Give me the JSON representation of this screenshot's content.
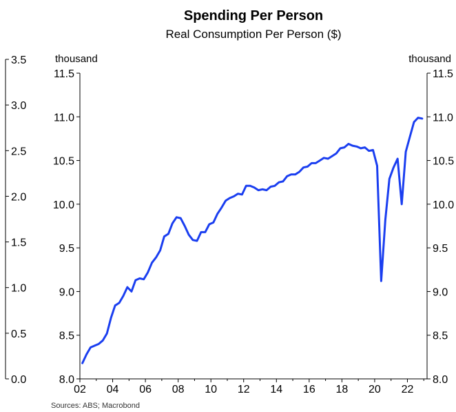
{
  "chart_data": {
    "type": "line",
    "title": "Spending Per Person",
    "subtitle": "Real Consumption Per Person ($)",
    "left_unit": "thousand",
    "right_unit": "thousand",
    "source": "Sources: ABS; Macrobond",
    "ylim": [
      8.0,
      11.5
    ],
    "xlim": [
      2002.0,
      2023.2
    ],
    "y_ticks": [
      "8.0",
      "8.5",
      "9.0",
      "9.5",
      "10.0",
      "10.5",
      "11.0",
      "11.5"
    ],
    "x_ticks": [
      {
        "value": 2002,
        "label": "02"
      },
      {
        "value": 2004,
        "label": "04"
      },
      {
        "value": 2006,
        "label": "06"
      },
      {
        "value": 2008,
        "label": "08"
      },
      {
        "value": 2010,
        "label": "10"
      },
      {
        "value": 2012,
        "label": "12"
      },
      {
        "value": 2014,
        "label": "14"
      },
      {
        "value": 2016,
        "label": "16"
      },
      {
        "value": 2018,
        "label": "18"
      },
      {
        "value": 2020,
        "label": "20"
      },
      {
        "value": 2022,
        "label": "22"
      }
    ],
    "outer_axis": {
      "ylim": [
        0.0,
        3.5
      ],
      "ticks": [
        "0.0",
        "0.5",
        "1.0",
        "1.5",
        "2.0",
        "2.5",
        "3.0",
        "3.5"
      ]
    },
    "grid": false,
    "legend": "none",
    "series_color": "#1a3ef0",
    "series": [
      {
        "values": [
          [
            2002.15,
            8.18
          ],
          [
            2002.4,
            8.28
          ],
          [
            2002.65,
            8.36
          ],
          [
            2002.9,
            8.38
          ],
          [
            2003.15,
            8.4
          ],
          [
            2003.4,
            8.44
          ],
          [
            2003.65,
            8.52
          ],
          [
            2003.9,
            8.7
          ],
          [
            2004.15,
            8.84
          ],
          [
            2004.4,
            8.87
          ],
          [
            2004.65,
            8.95
          ],
          [
            2004.9,
            9.05
          ],
          [
            2005.15,
            9.0
          ],
          [
            2005.4,
            9.13
          ],
          [
            2005.65,
            9.15
          ],
          [
            2005.9,
            9.14
          ],
          [
            2006.15,
            9.22
          ],
          [
            2006.4,
            9.33
          ],
          [
            2006.65,
            9.39
          ],
          [
            2006.9,
            9.47
          ],
          [
            2007.15,
            9.63
          ],
          [
            2007.4,
            9.66
          ],
          [
            2007.65,
            9.78
          ],
          [
            2007.9,
            9.85
          ],
          [
            2008.15,
            9.84
          ],
          [
            2008.4,
            9.75
          ],
          [
            2008.65,
            9.65
          ],
          [
            2008.9,
            9.59
          ],
          [
            2009.15,
            9.58
          ],
          [
            2009.4,
            9.68
          ],
          [
            2009.65,
            9.68
          ],
          [
            2009.9,
            9.77
          ],
          [
            2010.15,
            9.79
          ],
          [
            2010.4,
            9.89
          ],
          [
            2010.65,
            9.96
          ],
          [
            2010.9,
            10.04
          ],
          [
            2011.15,
            10.07
          ],
          [
            2011.4,
            10.09
          ],
          [
            2011.65,
            10.12
          ],
          [
            2011.9,
            10.11
          ],
          [
            2012.15,
            10.21
          ],
          [
            2012.4,
            10.21
          ],
          [
            2012.65,
            10.19
          ],
          [
            2012.9,
            10.16
          ],
          [
            2013.15,
            10.17
          ],
          [
            2013.4,
            10.16
          ],
          [
            2013.65,
            10.2
          ],
          [
            2013.9,
            10.21
          ],
          [
            2014.15,
            10.25
          ],
          [
            2014.4,
            10.26
          ],
          [
            2014.65,
            10.32
          ],
          [
            2014.9,
            10.34
          ],
          [
            2015.15,
            10.34
          ],
          [
            2015.4,
            10.37
          ],
          [
            2015.65,
            10.42
          ],
          [
            2015.9,
            10.43
          ],
          [
            2016.15,
            10.47
          ],
          [
            2016.4,
            10.47
          ],
          [
            2016.65,
            10.5
          ],
          [
            2016.9,
            10.53
          ],
          [
            2017.15,
            10.52
          ],
          [
            2017.4,
            10.55
          ],
          [
            2017.65,
            10.58
          ],
          [
            2017.9,
            10.64
          ],
          [
            2018.15,
            10.65
          ],
          [
            2018.4,
            10.69
          ],
          [
            2018.65,
            10.67
          ],
          [
            2018.9,
            10.66
          ],
          [
            2019.15,
            10.64
          ],
          [
            2019.4,
            10.65
          ],
          [
            2019.65,
            10.61
          ],
          [
            2019.9,
            10.62
          ],
          [
            2020.15,
            10.44
          ],
          [
            2020.4,
            9.12
          ],
          [
            2020.65,
            9.82
          ],
          [
            2020.9,
            10.29
          ],
          [
            2021.15,
            10.42
          ],
          [
            2021.4,
            10.52
          ],
          [
            2021.65,
            10.0
          ],
          [
            2021.9,
            10.6
          ],
          [
            2022.15,
            10.77
          ],
          [
            2022.4,
            10.94
          ],
          [
            2022.65,
            10.99
          ],
          [
            2022.9,
            10.98
          ]
        ]
      }
    ]
  }
}
